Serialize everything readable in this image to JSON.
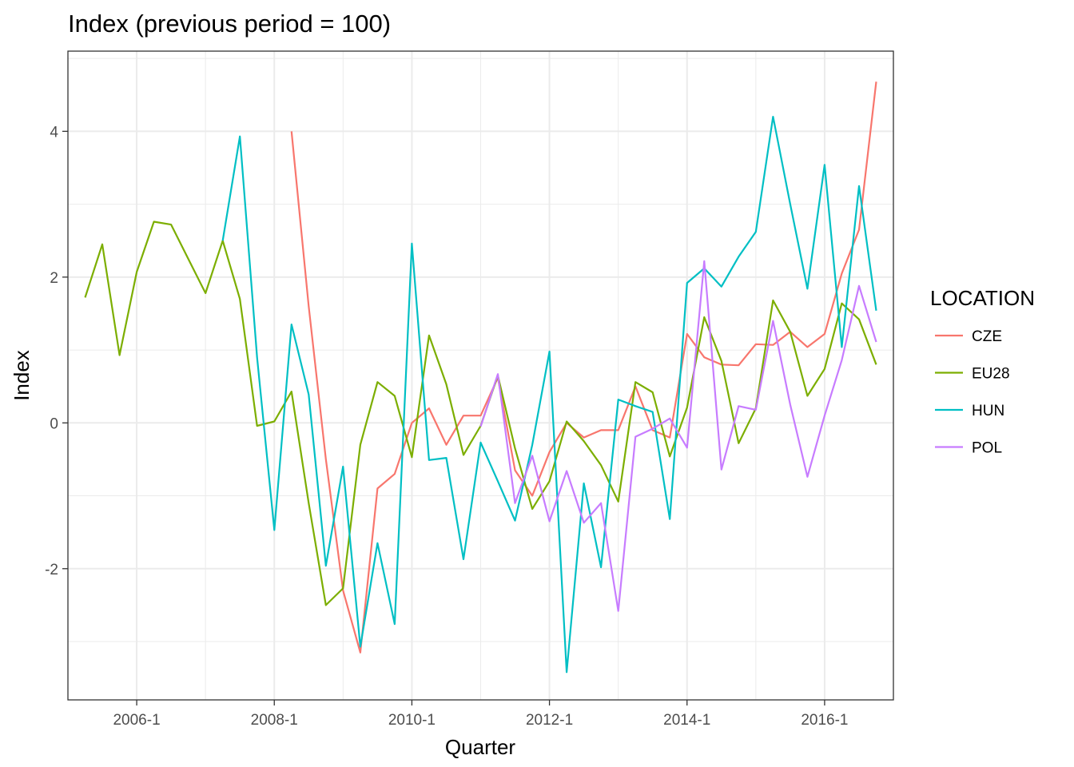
{
  "chart_data": {
    "type": "line",
    "title": "Index (previous period = 100)",
    "xlabel": "Quarter",
    "ylabel": "Index",
    "x_range": [
      2005.0,
      2017.0
    ],
    "ylim": [
      -3.8,
      5.1
    ],
    "x_ticks": [
      {
        "value": 2006.0,
        "label": "2006-1"
      },
      {
        "value": 2008.0,
        "label": "2008-1"
      },
      {
        "value": 2010.0,
        "label": "2010-1"
      },
      {
        "value": 2012.0,
        "label": "2012-1"
      },
      {
        "value": 2014.0,
        "label": "2014-1"
      },
      {
        "value": 2016.0,
        "label": "2016-1"
      }
    ],
    "y_ticks": [
      {
        "value": -2,
        "label": "-2"
      },
      {
        "value": 0,
        "label": "0"
      },
      {
        "value": 2,
        "label": "2"
      },
      {
        "value": 4,
        "label": "4"
      }
    ],
    "grid": true,
    "legend": {
      "title": "LOCATION",
      "position": "right"
    },
    "series": [
      {
        "name": "CZE",
        "color": "#F8766D",
        "points": [
          [
            2008.25,
            4.0
          ],
          [
            2008.5,
            1.6
          ],
          [
            2008.75,
            -0.5
          ],
          [
            2009.0,
            -2.3
          ],
          [
            2009.25,
            -3.15
          ],
          [
            2009.5,
            -0.9
          ],
          [
            2009.75,
            -0.7
          ],
          [
            2010.0,
            0.0
          ],
          [
            2010.25,
            0.2
          ],
          [
            2010.5,
            -0.3
          ],
          [
            2010.75,
            0.1
          ],
          [
            2011.0,
            0.1
          ],
          [
            2011.25,
            0.62
          ],
          [
            2011.5,
            -0.65
          ],
          [
            2011.75,
            -1.0
          ],
          [
            2012.0,
            -0.4
          ],
          [
            2012.25,
            0.0
          ],
          [
            2012.5,
            -0.2
          ],
          [
            2012.75,
            -0.1
          ],
          [
            2013.0,
            -0.1
          ],
          [
            2013.25,
            0.5
          ],
          [
            2013.5,
            -0.1
          ],
          [
            2013.75,
            -0.2
          ],
          [
            2014.0,
            1.22
          ],
          [
            2014.25,
            0.9
          ],
          [
            2014.5,
            0.8
          ],
          [
            2014.75,
            0.79
          ],
          [
            2015.0,
            1.08
          ],
          [
            2015.25,
            1.07
          ],
          [
            2015.5,
            1.25
          ],
          [
            2015.75,
            1.04
          ],
          [
            2016.0,
            1.22
          ],
          [
            2016.25,
            2.05
          ],
          [
            2016.5,
            2.65
          ],
          [
            2016.75,
            4.68
          ]
        ]
      },
      {
        "name": "EU28",
        "color": "#7CAE00",
        "points": [
          [
            2005.25,
            1.72
          ],
          [
            2005.5,
            2.45
          ],
          [
            2005.75,
            0.93
          ],
          [
            2006.0,
            2.07
          ],
          [
            2006.25,
            2.76
          ],
          [
            2006.5,
            2.72
          ],
          [
            2006.75,
            2.25
          ],
          [
            2007.0,
            1.78
          ],
          [
            2007.25,
            2.5
          ],
          [
            2007.5,
            1.7
          ],
          [
            2007.75,
            -0.04
          ],
          [
            2008.0,
            0.02
          ],
          [
            2008.25,
            0.43
          ],
          [
            2008.5,
            -1.1
          ],
          [
            2008.75,
            -2.5
          ],
          [
            2009.0,
            -2.27
          ],
          [
            2009.25,
            -0.3
          ],
          [
            2009.5,
            0.56
          ],
          [
            2009.75,
            0.37
          ],
          [
            2010.0,
            -0.47
          ],
          [
            2010.25,
            1.2
          ],
          [
            2010.5,
            0.53
          ],
          [
            2010.75,
            -0.44
          ],
          [
            2011.0,
            -0.04
          ],
          [
            2011.25,
            0.65
          ],
          [
            2011.5,
            -0.35
          ],
          [
            2011.75,
            -1.18
          ],
          [
            2012.0,
            -0.8
          ],
          [
            2012.25,
            0.02
          ],
          [
            2012.5,
            -0.25
          ],
          [
            2012.75,
            -0.58
          ],
          [
            2013.0,
            -1.08
          ],
          [
            2013.25,
            0.56
          ],
          [
            2013.5,
            0.42
          ],
          [
            2013.75,
            -0.46
          ],
          [
            2014.0,
            0.21
          ],
          [
            2014.25,
            1.45
          ],
          [
            2014.5,
            0.85
          ],
          [
            2014.75,
            -0.28
          ],
          [
            2015.0,
            0.2
          ],
          [
            2015.25,
            1.68
          ],
          [
            2015.5,
            1.25
          ],
          [
            2015.75,
            0.37
          ],
          [
            2016.0,
            0.74
          ],
          [
            2016.25,
            1.64
          ],
          [
            2016.5,
            1.42
          ],
          [
            2016.75,
            0.8
          ]
        ]
      },
      {
        "name": "HUN",
        "color": "#00BFC4",
        "points": [
          [
            2007.25,
            2.5
          ],
          [
            2007.5,
            3.93
          ],
          [
            2007.75,
            0.9
          ],
          [
            2008.0,
            -1.47
          ],
          [
            2008.25,
            1.35
          ],
          [
            2008.5,
            0.39
          ],
          [
            2008.75,
            -1.96
          ],
          [
            2009.0,
            -0.6
          ],
          [
            2009.25,
            -3.07
          ],
          [
            2009.5,
            -1.65
          ],
          [
            2009.75,
            -2.76
          ],
          [
            2010.0,
            2.46
          ],
          [
            2010.25,
            -0.51
          ],
          [
            2010.5,
            -0.48
          ],
          [
            2010.75,
            -1.87
          ],
          [
            2011.0,
            -0.27
          ],
          [
            2011.25,
            -0.8
          ],
          [
            2011.5,
            -1.34
          ],
          [
            2011.75,
            -0.3
          ],
          [
            2012.0,
            0.98
          ],
          [
            2012.25,
            -3.42
          ],
          [
            2012.5,
            -0.83
          ],
          [
            2012.75,
            -1.98
          ],
          [
            2013.0,
            0.32
          ],
          [
            2013.25,
            0.23
          ],
          [
            2013.5,
            0.15
          ],
          [
            2013.75,
            -1.32
          ],
          [
            2014.0,
            1.92
          ],
          [
            2014.25,
            2.12
          ],
          [
            2014.5,
            1.87
          ],
          [
            2014.75,
            2.28
          ],
          [
            2015.0,
            2.62
          ],
          [
            2015.25,
            4.2
          ],
          [
            2015.5,
            3.0
          ],
          [
            2015.75,
            1.84
          ],
          [
            2016.0,
            3.54
          ],
          [
            2016.25,
            1.04
          ],
          [
            2016.5,
            3.25
          ],
          [
            2016.75,
            1.54
          ]
        ]
      },
      {
        "name": "POL",
        "color": "#C77CFF",
        "points": [
          [
            2011.0,
            -0.05
          ],
          [
            2011.25,
            0.67
          ],
          [
            2011.5,
            -1.1
          ],
          [
            2011.75,
            -0.45
          ],
          [
            2012.0,
            -1.35
          ],
          [
            2012.25,
            -0.66
          ],
          [
            2012.5,
            -1.37
          ],
          [
            2012.75,
            -1.1
          ],
          [
            2013.0,
            -2.58
          ],
          [
            2013.25,
            -0.19
          ],
          [
            2013.5,
            -0.08
          ],
          [
            2013.75,
            0.06
          ],
          [
            2014.0,
            -0.34
          ],
          [
            2014.25,
            2.22
          ],
          [
            2014.5,
            -0.64
          ],
          [
            2014.75,
            0.23
          ],
          [
            2015.0,
            0.18
          ],
          [
            2015.25,
            1.4
          ],
          [
            2015.5,
            0.25
          ],
          [
            2015.75,
            -0.74
          ],
          [
            2016.0,
            0.1
          ],
          [
            2016.25,
            0.86
          ],
          [
            2016.5,
            1.88
          ],
          [
            2016.75,
            1.11
          ]
        ]
      }
    ]
  }
}
